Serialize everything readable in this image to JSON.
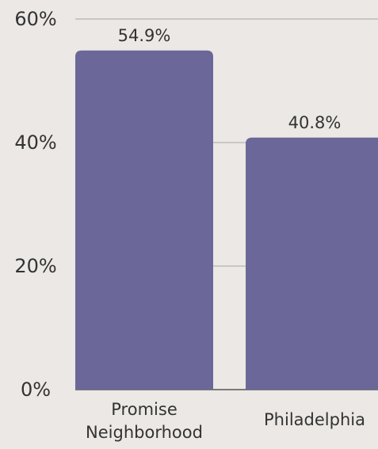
{
  "chart_data": {
    "type": "bar",
    "categories": [
      [
        "Promise",
        "Neighborhood"
      ],
      [
        "Philadelphia"
      ]
    ],
    "values": [
      54.9,
      40.8
    ],
    "data_labels": [
      "54.9%",
      "40.8%"
    ],
    "y_ticks": [
      {
        "value": 0,
        "label": "0%"
      },
      {
        "value": 20,
        "label": "20%"
      },
      {
        "value": 40,
        "label": "40%"
      },
      {
        "value": 60,
        "label": "60%"
      }
    ],
    "ylim": [
      0,
      60
    ],
    "grid": true,
    "legend": "none",
    "title": "",
    "xlabel": "",
    "ylabel": "",
    "colors": {
      "bar": "#6c6799",
      "grid": "#a6a6a6",
      "background": "#ebe8e5",
      "text": "#333333"
    }
  }
}
